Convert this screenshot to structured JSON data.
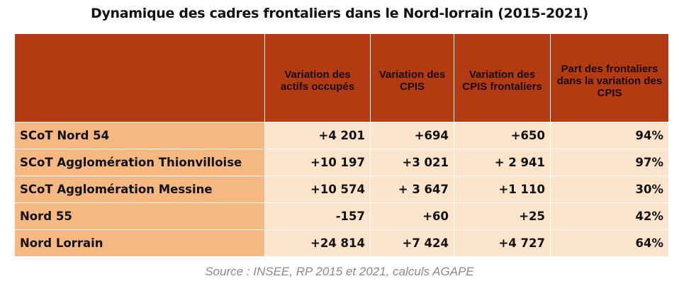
{
  "title": "Dynamique des cadres frontaliers dans le Nord-lorrain (2015-2021)",
  "headers": [
    "",
    "Variation des actifs occupés",
    "Variation des CPIS",
    "Variation des CPIS frontaliers",
    "Part des frontaliers dans la variation des CPIS"
  ],
  "rows": [
    {
      "label": "SCoT Nord 54",
      "values": [
        "+4 201",
        "+694",
        "+650",
        "94%"
      ]
    },
    {
      "label": "SCoT Agglomération Thionvilloise",
      "values": [
        "+10 197",
        "+3 021",
        "+ 2 941",
        "97%"
      ]
    },
    {
      "label": "SCoT Agglomération Messine",
      "values": [
        "+10 574",
        "+ 3 647",
        "+1 110",
        "30%"
      ]
    },
    {
      "label": "Nord 55",
      "values": [
        "-157",
        "+60",
        "+25",
        "42%"
      ]
    },
    {
      "label": "Nord Lorrain",
      "values": [
        "+24 814",
        "+7 424",
        "+4 727",
        "64%"
      ]
    }
  ],
  "source": "Source : INSEE, RP 2015 et 2021, calculs AGAPE",
  "colors": {
    "header": "#B23B12",
    "label_col": "#F5B880",
    "cells": "#FCE3CC"
  }
}
